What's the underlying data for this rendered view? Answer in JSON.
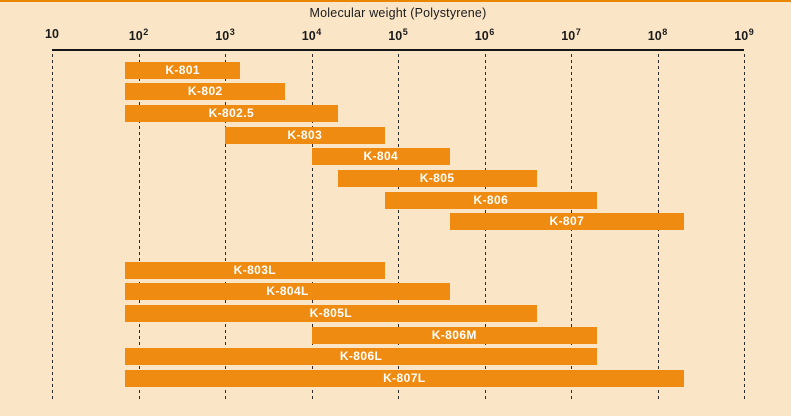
{
  "colors": {
    "background": "#FAE5C6",
    "bar": "#EF8B10",
    "bar_label": "#FFFFFF",
    "axis": "#151515",
    "grid": "#2B2B2B",
    "text": "#1A1A1A",
    "top_border": "#E98704"
  },
  "chart_data": {
    "type": "bar",
    "orientation": "horizontal",
    "x_scale": "log",
    "title": "Molecular weight (Polystyrene)",
    "xlabel": "Molecular weight (Polystyrene)",
    "ylabel": "",
    "xlim": [
      10,
      1000000000
    ],
    "grid": "dashed-vertical-per-decade",
    "legend": false,
    "x_ticks": [
      {
        "base": "10",
        "sup": "",
        "exp": 1
      },
      {
        "base": "10",
        "sup": "2",
        "exp": 2
      },
      {
        "base": "10",
        "sup": "3",
        "exp": 3
      },
      {
        "base": "10",
        "sup": "4",
        "exp": 4
      },
      {
        "base": "10",
        "sup": "5",
        "exp": 5
      },
      {
        "base": "10",
        "sup": "6",
        "exp": 6
      },
      {
        "base": "10",
        "sup": "7",
        "exp": 7
      },
      {
        "base": "10",
        "sup": "8",
        "exp": 8
      },
      {
        "base": "10",
        "sup": "9",
        "exp": 9
      }
    ],
    "bars": [
      {
        "name": "K-801",
        "group": 0,
        "range": [
          70,
          1500
        ]
      },
      {
        "name": "K-802",
        "group": 0,
        "range": [
          70,
          5000
        ]
      },
      {
        "name": "K-802.5",
        "group": 0,
        "range": [
          70,
          20000
        ]
      },
      {
        "name": "K-803",
        "group": 0,
        "range": [
          1000,
          70000
        ]
      },
      {
        "name": "K-804",
        "group": 0,
        "range": [
          10000,
          400000
        ]
      },
      {
        "name": "K-805",
        "group": 0,
        "range": [
          20000,
          4000000
        ]
      },
      {
        "name": "K-806",
        "group": 0,
        "range": [
          70000,
          20000000
        ]
      },
      {
        "name": "K-807",
        "group": 0,
        "range": [
          400000,
          200000000
        ]
      },
      {
        "name": "K-803L",
        "group": 1,
        "range": [
          70,
          70000
        ]
      },
      {
        "name": "K-804L",
        "group": 1,
        "range": [
          70,
          400000
        ]
      },
      {
        "name": "K-805L",
        "group": 1,
        "range": [
          70,
          4000000
        ]
      },
      {
        "name": "K-806M",
        "group": 1,
        "range": [
          10000,
          20000000
        ]
      },
      {
        "name": "K-806L",
        "group": 1,
        "range": [
          70,
          20000000
        ]
      },
      {
        "name": "K-807L",
        "group": 1,
        "range": [
          70,
          200000000
        ]
      }
    ]
  }
}
